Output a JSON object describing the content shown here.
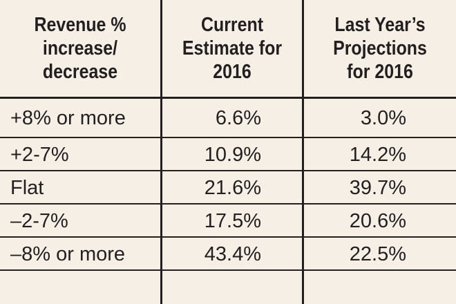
{
  "chart_data": {
    "type": "table",
    "columns": [
      "Revenue %\nincrease/\ndecrease",
      "Current\nEstimate for\n2016",
      "Last Year’s\nProjections\nfor 2016"
    ],
    "rows": [
      [
        "+8% or more",
        "6.6%",
        "3.0%"
      ],
      [
        "+2-7%",
        "10.9%",
        "14.2%"
      ],
      [
        "Flat",
        "21.6%",
        "39.7%"
      ],
      [
        "–2-7%",
        "17.5%",
        "20.6%"
      ],
      [
        "–8% or more",
        "43.4%",
        "22.5%"
      ]
    ],
    "values": {
      "current_estimate_2016": [
        6.6,
        10.9,
        21.6,
        17.5,
        43.4
      ],
      "last_year_projections_2016": [
        3.0,
        14.2,
        39.7,
        20.6,
        22.5
      ]
    }
  },
  "colors": {
    "background": "#f5efe6",
    "text": "#231f20",
    "rule": "#231f20"
  }
}
